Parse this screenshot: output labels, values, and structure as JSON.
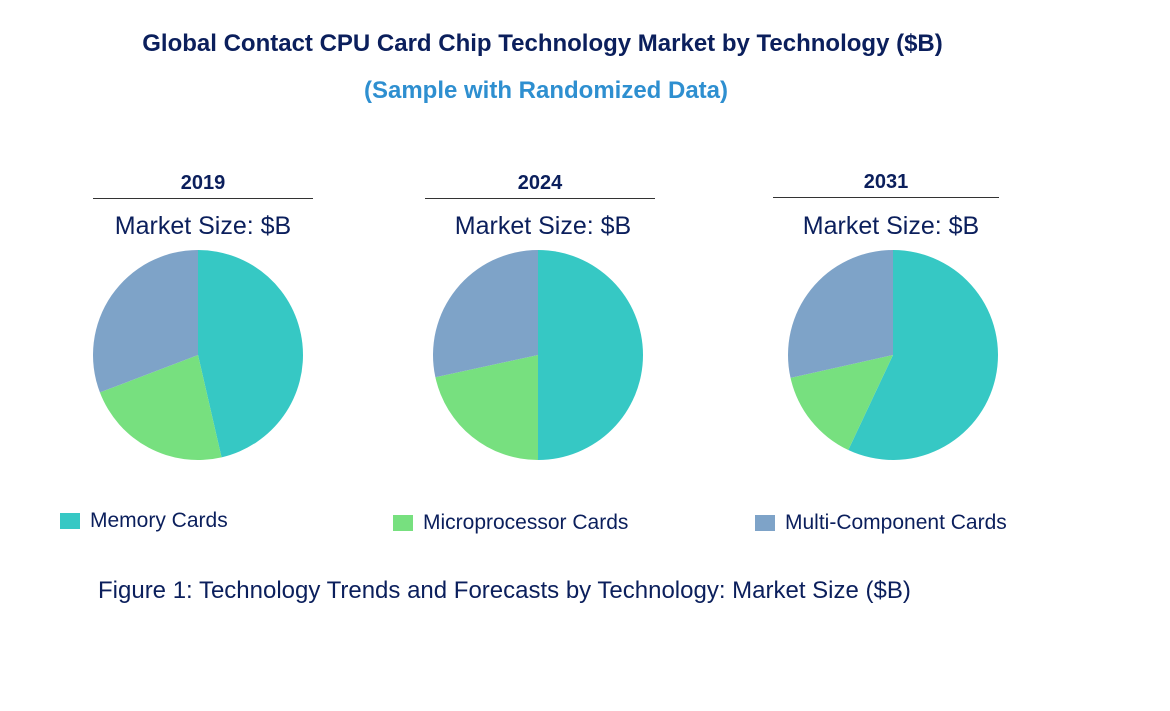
{
  "title": "Global Contact CPU Card Chip Technology Market by Technology ($B)",
  "subtitle": "(Sample with Randomized Data)",
  "caption": "Figure 1: Technology Trends and Forecasts by Technology: Market Size ($B)",
  "chart_data": [
    {
      "type": "pie",
      "title": "2019",
      "subtitle": "Market Size: $B",
      "categories": [
        "Memory Cards",
        "Microprocessor Cards",
        "Multi-Component Cards"
      ],
      "values": [
        46.4,
        22.8,
        30.8
      ]
    },
    {
      "type": "pie",
      "title": "2024",
      "subtitle": "Market Size: $B",
      "categories": [
        "Memory Cards",
        "Microprocessor Cards",
        "Multi-Component Cards"
      ],
      "values": [
        50.0,
        21.6,
        28.4
      ]
    },
    {
      "type": "pie",
      "title": "2031",
      "subtitle": "Market Size: $B",
      "categories": [
        "Memory Cards",
        "Microprocessor Cards",
        "Multi-Component Cards"
      ],
      "values": [
        57.0,
        14.5,
        28.5
      ]
    }
  ],
  "legend": [
    {
      "label": "Memory Cards",
      "color": "#36c8c4"
    },
    {
      "label": "Microprocessor Cards",
      "color": "#77e07f"
    },
    {
      "label": "Multi-Component Cards",
      "color": "#7ea3c8"
    }
  ]
}
